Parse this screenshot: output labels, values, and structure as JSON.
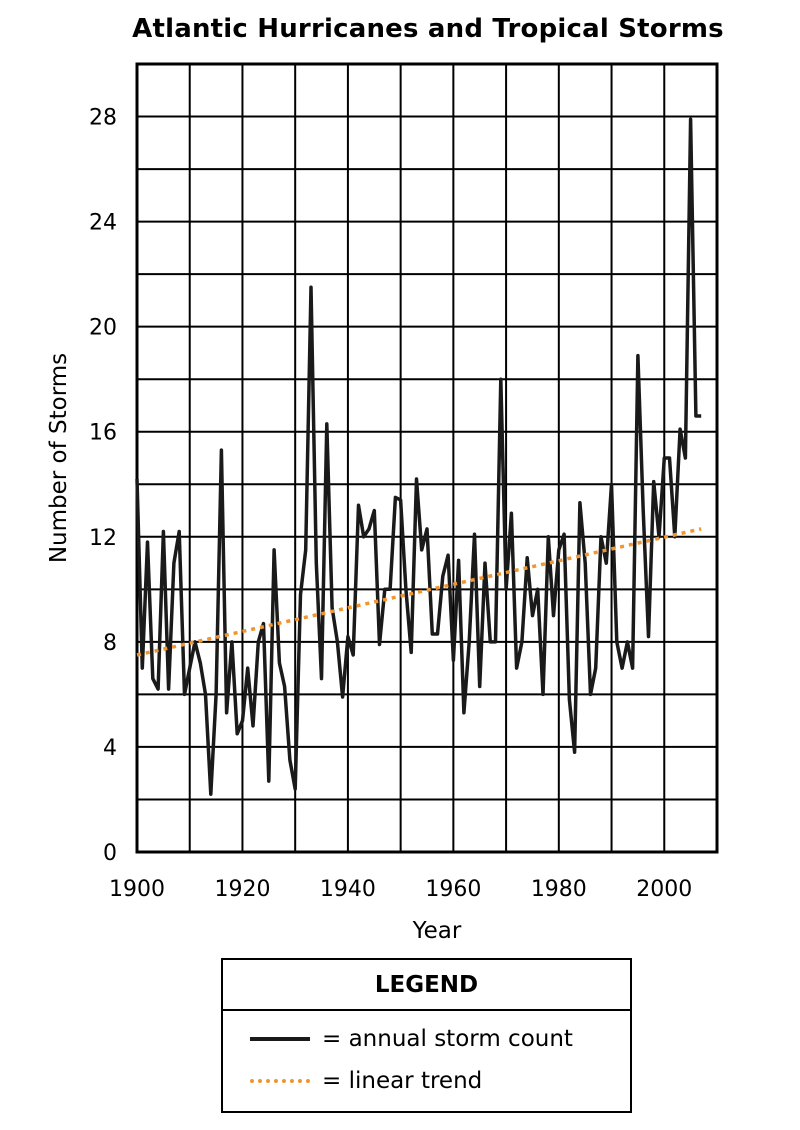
{
  "chart_data": {
    "type": "line",
    "title": "Atlantic Hurricanes and Tropical Storms",
    "xlabel": "Year",
    "ylabel": "Number of Storms",
    "xlim": [
      1900,
      2010
    ],
    "ylim": [
      0,
      30
    ],
    "x_ticks": [
      1900,
      1920,
      1940,
      1960,
      1980,
      2000
    ],
    "y_ticks": [
      0,
      4,
      8,
      12,
      16,
      20,
      24,
      28
    ],
    "grid": true,
    "x": [
      1900,
      1901,
      1902,
      1903,
      1904,
      1905,
      1906,
      1907,
      1908,
      1909,
      1910,
      1911,
      1912,
      1913,
      1914,
      1915,
      1916,
      1917,
      1918,
      1919,
      1920,
      1921,
      1922,
      1923,
      1924,
      1925,
      1926,
      1927,
      1928,
      1929,
      1930,
      1931,
      1932,
      1933,
      1934,
      1935,
      1936,
      1937,
      1938,
      1939,
      1940,
      1941,
      1942,
      1943,
      1944,
      1945,
      1946,
      1947,
      1948,
      1949,
      1950,
      1951,
      1952,
      1953,
      1954,
      1955,
      1956,
      1957,
      1958,
      1959,
      1960,
      1961,
      1962,
      1963,
      1964,
      1965,
      1966,
      1967,
      1968,
      1969,
      1970,
      1971,
      1972,
      1973,
      1974,
      1975,
      1976,
      1977,
      1978,
      1979,
      1980,
      1981,
      1982,
      1983,
      1984,
      1985,
      1986,
      1987,
      1988,
      1989,
      1990,
      1991,
      1992,
      1993,
      1994,
      1995,
      1996,
      1997,
      1998,
      1999,
      2000,
      2001,
      2002,
      2003,
      2004,
      2005,
      2006,
      2007
    ],
    "series": [
      {
        "name": "annual storm count",
        "values": [
          14.2,
          7.0,
          11.8,
          6.6,
          6.2,
          12.2,
          6.2,
          11.0,
          12.2,
          6.0,
          7.0,
          8.0,
          7.2,
          6.0,
          2.2,
          6.0,
          15.3,
          5.3,
          8.0,
          4.5,
          5.0,
          7.0,
          4.8,
          8.0,
          8.7,
          2.7,
          11.5,
          7.2,
          6.3,
          3.5,
          2.4,
          9.8,
          11.5,
          21.5,
          11.0,
          6.6,
          16.3,
          9.3,
          8.0,
          5.9,
          8.2,
          7.5,
          13.2,
          12.0,
          12.3,
          13.0,
          7.9,
          10.0,
          10.0,
          13.5,
          13.4,
          10.0,
          7.6,
          14.2,
          11.5,
          12.3,
          8.3,
          8.3,
          10.5,
          11.3,
          7.3,
          11.1,
          5.3,
          8.0,
          12.1,
          6.3,
          11.0,
          8.0,
          8.0,
          18.0,
          10.0,
          12.9,
          7.0,
          8.0,
          11.2,
          9.0,
          10.0,
          6.0,
          12.0,
          9.0,
          11.5,
          12.1,
          5.8,
          3.8,
          13.3,
          11.0,
          6.0,
          7.0,
          12.0,
          11.0,
          14.0,
          8.0,
          7.0,
          8.0,
          7.0,
          18.9,
          13.0,
          8.2,
          14.1,
          12.0,
          15.0,
          15.0,
          12.0,
          16.1,
          15.0,
          27.9,
          16.6,
          16.6
        ]
      },
      {
        "name": "linear trend",
        "x": [
          1900,
          2007
        ],
        "values": [
          7.5,
          12.3
        ]
      }
    ],
    "colors": {
      "annual": "#1a1a1a",
      "trend": "#f0952f"
    }
  },
  "legend": {
    "heading": "LEGEND",
    "items": [
      {
        "label": "= annual storm count"
      },
      {
        "label": "= linear trend"
      }
    ]
  }
}
